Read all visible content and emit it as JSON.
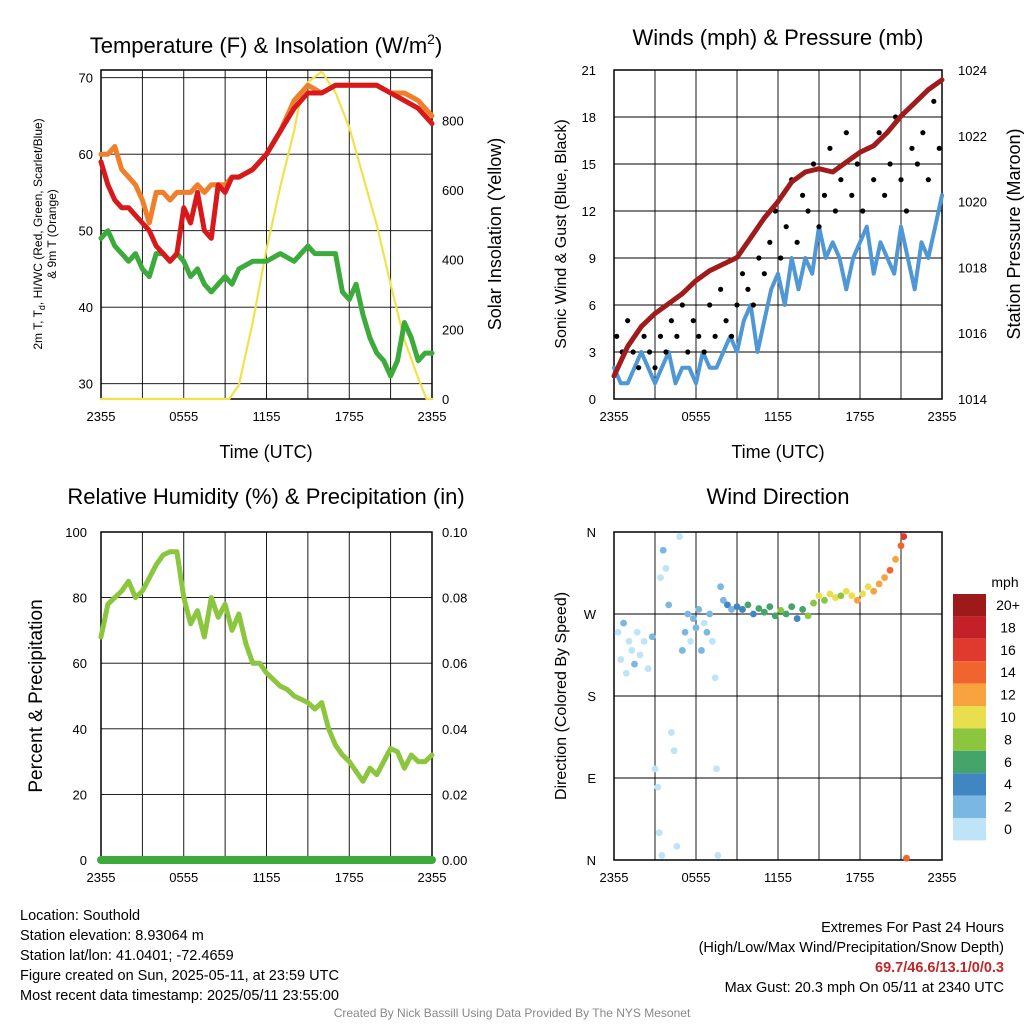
{
  "chart_data": [
    {
      "type": "line",
      "title_main": "Temperature (F) & Insolation (W/m",
      "title_sup": "2",
      "title_end": ")",
      "xlabel": "Time (UTC)",
      "ylabel_lines": [
        "2m T, T",
        "d",
        ", HI/WC (Red, Green, Scarlet/Blue)",
        "& 9m T (Orange)"
      ],
      "ylabel2": "Solar Insolation (Yellow)",
      "x_ticks": [
        "2355",
        "0555",
        "1155",
        "1755",
        "2355"
      ],
      "ylim": [
        28,
        71
      ],
      "y_ticks": [
        30,
        40,
        50,
        60,
        70
      ],
      "y2lim": [
        0,
        945
      ],
      "y2_ticks": [
        0,
        200,
        400,
        600,
        800
      ],
      "colors": {
        "temp_2m": "#d7191c",
        "dewpoint": "#3cab3c",
        "temp_9m": "#f07f2a",
        "insolation": "#f2e24a"
      },
      "series": [
        {
          "key": "temp_2m",
          "x": [
            0,
            0.5,
            1,
            1.5,
            2,
            2.5,
            3,
            3.5,
            4,
            4.5,
            5,
            5.5,
            6,
            6.5,
            7,
            7.5,
            8,
            8.5,
            9,
            9.5,
            10,
            11,
            12,
            13,
            14,
            15,
            16,
            17,
            18,
            19,
            20,
            21,
            22,
            23,
            24
          ],
          "values": [
            59,
            56,
            54,
            53,
            53,
            52,
            51,
            50,
            48,
            47,
            46,
            47,
            53,
            51,
            55,
            50,
            49,
            56,
            55,
            57,
            57,
            58,
            60,
            63,
            66,
            68,
            68,
            69,
            69,
            69,
            69,
            68,
            67,
            66,
            64
          ]
        },
        {
          "key": "temp_9m",
          "x": [
            0,
            0.5,
            1,
            1.5,
            2,
            2.5,
            3,
            3.5,
            4,
            4.5,
            5,
            5.5,
            6,
            6.5,
            7,
            7.5,
            8,
            8.5,
            9,
            9.5,
            10,
            11,
            12,
            13,
            14,
            15,
            16,
            17,
            18,
            19,
            20,
            21,
            22,
            23,
            24
          ],
          "values": [
            60,
            60,
            61,
            58,
            57,
            56,
            54,
            51,
            55,
            55,
            54,
            55,
            55,
            55,
            56,
            55,
            56,
            56,
            56,
            57,
            57,
            58,
            60,
            63,
            67,
            69,
            68,
            69,
            69,
            69,
            69,
            68,
            68,
            67,
            65
          ]
        },
        {
          "key": "dewpoint",
          "x": [
            0,
            0.5,
            1,
            1.5,
            2,
            2.5,
            3,
            3.5,
            4,
            4.5,
            5,
            5.5,
            6,
            6.5,
            7,
            7.5,
            8,
            8.5,
            9,
            9.5,
            10,
            11,
            12,
            13,
            14,
            14.5,
            15,
            15.5,
            16,
            16.5,
            17,
            17.5,
            18,
            18.5,
            19,
            19.5,
            20,
            20.5,
            21,
            21.5,
            22,
            22.5,
            23,
            23.5,
            24
          ],
          "values": [
            49,
            50,
            48,
            47,
            46,
            47,
            45,
            44,
            47,
            47,
            46,
            47,
            46,
            44,
            45,
            43,
            42,
            43,
            44,
            43,
            45,
            46,
            46,
            47,
            46,
            47,
            48,
            47,
            47,
            47,
            47,
            42,
            41,
            43,
            39,
            36,
            34,
            33,
            31,
            33,
            38,
            36,
            33,
            34,
            34
          ]
        },
        {
          "key": "insolation",
          "x": [
            0,
            9.3,
            10,
            11,
            12,
            13,
            14,
            14.5,
            15,
            16,
            17,
            18,
            19,
            20,
            21,
            22,
            23,
            23.6,
            24
          ],
          "values": [
            0,
            0,
            40,
            220,
            430,
            610,
            770,
            870,
            910,
            940,
            880,
            780,
            640,
            500,
            330,
            170,
            60,
            0,
            0
          ]
        }
      ]
    },
    {
      "type": "scatter",
      "title": "Winds (mph) & Pressure (mb)",
      "xlabel": "Time (UTC)",
      "ylabel": "Sonic Wind & Gust (Blue, Black)",
      "ylabel2": "Station Pressure (Maroon)",
      "x_ticks": [
        "2355",
        "0555",
        "1155",
        "1755",
        "2355"
      ],
      "ylim": [
        0,
        21
      ],
      "y_ticks": [
        0,
        3,
        6,
        9,
        12,
        15,
        18,
        21
      ],
      "y2lim": [
        1014,
        1024
      ],
      "y2_ticks": [
        1014,
        1016,
        1018,
        1020,
        1022,
        1024
      ],
      "colors": {
        "wind": "#4f97d5",
        "gust": "#000000",
        "pressure": "#a01b1b"
      },
      "series": [
        {
          "key": "wind",
          "x": [
            0,
            0.5,
            1,
            1.5,
            2,
            2.5,
            3,
            3.5,
            4,
            4.5,
            5,
            5.5,
            6,
            6.5,
            7,
            7.5,
            8,
            8.5,
            9,
            9.5,
            10,
            10.5,
            11,
            11.5,
            12,
            12.5,
            13,
            13.5,
            14,
            14.5,
            15,
            15.5,
            16,
            16.5,
            17,
            17.5,
            18,
            18.5,
            19,
            19.5,
            20,
            20.5,
            21,
            21.5,
            22,
            22.5,
            23,
            23.5,
            24
          ],
          "values": [
            2,
            1,
            1,
            2,
            3,
            2,
            1,
            2,
            3,
            1,
            2,
            2,
            1,
            3,
            2,
            2,
            3,
            4,
            3,
            5,
            6,
            3,
            5,
            7,
            8,
            6,
            9,
            7,
            9,
            8,
            11,
            9,
            10,
            9,
            7,
            9,
            10,
            11,
            8,
            10,
            9,
            8,
            11,
            9,
            7,
            10,
            9,
            11,
            13
          ]
        },
        {
          "key": "gust",
          "x": [
            0.2,
            0.6,
            1,
            1.4,
            1.8,
            2.2,
            2.6,
            3,
            3.4,
            3.8,
            4.2,
            4.6,
            5,
            5.4,
            5.8,
            6.2,
            6.6,
            7,
            7.4,
            7.8,
            8.2,
            8.6,
            9,
            9.4,
            9.8,
            10.2,
            10.6,
            11,
            11.4,
            11.8,
            12.2,
            12.6,
            13,
            13.4,
            13.8,
            14.2,
            14.6,
            15,
            15.4,
            15.8,
            16.2,
            16.6,
            17,
            17.4,
            17.8,
            18.2,
            18.6,
            19,
            19.4,
            19.8,
            20.2,
            20.6,
            21,
            21.4,
            21.8,
            22.2,
            22.6,
            23,
            23.4,
            23.8
          ],
          "values": [
            4,
            3,
            5,
            3,
            2,
            4,
            3,
            2,
            4,
            3,
            5,
            4,
            6,
            3,
            5,
            4,
            3,
            6,
            4,
            7,
            5,
            4,
            6,
            8,
            7,
            6,
            9,
            8,
            10,
            12,
            9,
            11,
            14,
            10,
            13,
            12,
            15,
            11,
            13,
            16,
            12,
            14,
            17,
            13,
            15,
            12,
            16,
            14,
            17,
            13,
            15,
            18,
            14,
            12,
            16,
            15,
            17,
            14,
            19,
            16
          ]
        },
        {
          "key": "pressure",
          "x": [
            0,
            1,
            2,
            3,
            4,
            5,
            6,
            7,
            8,
            9,
            10,
            11,
            12,
            13,
            14,
            15,
            16,
            17,
            18,
            19,
            20,
            21,
            22,
            23,
            24
          ],
          "values": [
            1014.7,
            1015.6,
            1016.2,
            1016.6,
            1016.9,
            1017.2,
            1017.6,
            1017.9,
            1018.1,
            1018.3,
            1018.9,
            1019.5,
            1020.0,
            1020.6,
            1020.9,
            1021.0,
            1020.9,
            1021.2,
            1021.5,
            1021.7,
            1022.1,
            1022.6,
            1023.0,
            1023.4,
            1023.7
          ]
        }
      ]
    },
    {
      "type": "line",
      "title": "Relative Humidity (%) & Precipitation (in)",
      "ylabel": "Percent & Precipitation",
      "x_ticks": [
        "2355",
        "0555",
        "1155",
        "1755",
        "2355"
      ],
      "ylim": [
        0,
        100
      ],
      "y_ticks": [
        0,
        20,
        40,
        60,
        80,
        100
      ],
      "y2lim": [
        0,
        0.1
      ],
      "y2_ticks": [
        "0.00",
        "0.02",
        "0.04",
        "0.06",
        "0.08",
        "0.10"
      ],
      "colors": {
        "rh": "#8cc63f",
        "precip": "#3cab3c"
      },
      "series": [
        {
          "key": "rh",
          "x": [
            0,
            0.5,
            1,
            1.5,
            2,
            2.5,
            3,
            3.5,
            4,
            4.5,
            5,
            5.5,
            6,
            6.5,
            7,
            7.5,
            8,
            8.5,
            9,
            9.5,
            10,
            10.5,
            11,
            11.5,
            12,
            12.5,
            13,
            13.5,
            14,
            14.5,
            15,
            15.5,
            16,
            16.5,
            17,
            17.5,
            18,
            18.5,
            19,
            19.5,
            20,
            20.5,
            21,
            21.5,
            22,
            22.5,
            23,
            23.5,
            24
          ],
          "values": [
            68,
            78,
            80,
            82,
            85,
            80,
            82,
            86,
            90,
            93,
            94,
            94,
            80,
            72,
            76,
            68,
            80,
            74,
            78,
            70,
            75,
            66,
            60,
            60,
            57,
            55,
            53,
            52,
            50,
            49,
            48,
            46,
            48,
            40,
            35,
            32,
            30,
            27,
            24,
            28,
            26,
            30,
            34,
            33,
            28,
            32,
            30,
            30,
            32
          ]
        },
        {
          "key": "precip",
          "x": [
            0,
            24
          ],
          "values": [
            0,
            0
          ]
        }
      ]
    },
    {
      "type": "scatter",
      "title": "Wind Direction",
      "ylabel": "Direction (Colored By Speed)",
      "x_ticks": [
        "2355",
        "0555",
        "1155",
        "1755",
        "2355"
      ],
      "y_ticks": [
        "N",
        "E",
        "S",
        "W",
        "N"
      ],
      "ylim": [
        0,
        360
      ],
      "colorbar_title": "mph",
      "colorbar_labels": [
        "20+",
        "18",
        "16",
        "14",
        "12",
        "10",
        "8",
        "6",
        "4",
        "2",
        "0"
      ],
      "colorbar_colors": [
        "#9e1a1a",
        "#c4202a",
        "#e03a2f",
        "#f0652e",
        "#f9a340",
        "#e8df4e",
        "#8cc63f",
        "#45a46a",
        "#3f86c2",
        "#7ab7e3",
        "#bfe3f7"
      ],
      "points": [
        [
          0.3,
          250,
          1
        ],
        [
          0.5,
          220,
          1
        ],
        [
          0.7,
          260,
          2
        ],
        [
          0.9,
          205,
          1
        ],
        [
          1.1,
          240,
          1
        ],
        [
          1.3,
          230,
          1
        ],
        [
          1.5,
          215,
          2
        ],
        [
          1.7,
          250,
          1
        ],
        [
          1.9,
          225,
          1
        ],
        [
          2.2,
          240,
          1
        ],
        [
          2.5,
          210,
          1
        ],
        [
          2.8,
          245,
          2
        ],
        [
          3.0,
          100,
          1
        ],
        [
          3.2,
          80,
          1
        ],
        [
          3.3,
          30,
          1
        ],
        [
          3.5,
          5,
          1
        ],
        [
          3.4,
          310,
          1
        ],
        [
          3.6,
          340,
          2
        ],
        [
          3.8,
          320,
          1
        ],
        [
          4.0,
          280,
          2
        ],
        [
          4.2,
          140,
          1
        ],
        [
          4.4,
          120,
          1
        ],
        [
          4.6,
          15,
          1
        ],
        [
          4.8,
          355,
          1
        ],
        [
          5.0,
          230,
          2
        ],
        [
          5.2,
          250,
          2
        ],
        [
          5.4,
          270,
          3
        ],
        [
          5.6,
          240,
          1
        ],
        [
          5.8,
          265,
          3
        ],
        [
          6.0,
          255,
          2
        ],
        [
          6.2,
          275,
          3
        ],
        [
          6.4,
          230,
          2
        ],
        [
          6.6,
          260,
          1
        ],
        [
          6.8,
          250,
          2
        ],
        [
          7.0,
          270,
          3
        ],
        [
          7.2,
          240,
          1
        ],
        [
          7.4,
          200,
          1
        ],
        [
          7.5,
          100,
          1
        ],
        [
          7.6,
          5,
          1
        ],
        [
          7.8,
          300,
          2
        ],
        [
          8.0,
          285,
          3
        ],
        [
          8.3,
          280,
          4
        ],
        [
          8.6,
          275,
          3
        ],
        [
          9.0,
          278,
          4
        ],
        [
          9.4,
          275,
          5
        ],
        [
          9.8,
          280,
          6
        ],
        [
          10.2,
          270,
          5
        ],
        [
          10.6,
          276,
          7
        ],
        [
          11.0,
          272,
          6
        ],
        [
          11.4,
          278,
          7
        ],
        [
          11.8,
          268,
          6
        ],
        [
          12.2,
          274,
          8
        ],
        [
          12.6,
          270,
          7
        ],
        [
          13.0,
          278,
          6
        ],
        [
          13.4,
          265,
          5
        ],
        [
          13.8,
          275,
          7
        ],
        [
          14.2,
          268,
          8
        ],
        [
          14.6,
          282,
          9
        ],
        [
          15.0,
          290,
          10
        ],
        [
          15.4,
          285,
          9
        ],
        [
          15.8,
          292,
          11
        ],
        [
          16.2,
          288,
          10
        ],
        [
          16.6,
          290,
          9
        ],
        [
          17.0,
          295,
          11
        ],
        [
          17.4,
          290,
          10
        ],
        [
          17.8,
          285,
          12
        ],
        [
          18.2,
          292,
          11
        ],
        [
          18.6,
          300,
          10
        ],
        [
          19.0,
          295,
          12
        ],
        [
          19.4,
          303,
          13
        ],
        [
          19.8,
          310,
          12
        ],
        [
          20.2,
          318,
          14
        ],
        [
          20.6,
          330,
          13
        ],
        [
          21.0,
          345,
          15
        ],
        [
          21.2,
          355,
          16
        ],
        [
          21.4,
          2,
          15
        ]
      ]
    }
  ],
  "info_left": [
    "Location: Southold",
    "Station elevation: 8.93064 m",
    "Station lat/lon: 41.0401; -72.4659",
    "Figure created on Sun, 2025-05-11, at 23:59 UTC",
    "Most recent data timestamp: 2025/05/11 23:55:00"
  ],
  "extremes": {
    "heading": "Extremes For Past 24 Hours",
    "subheading": "(High/Low/Max Wind/Precipitation/Snow Depth)",
    "values": "69.7/46.6/13.1/0/0.3",
    "gust": "Max Gust: 20.3 mph On 05/11 at 2340 UTC"
  },
  "credit": "Created By Nick Bassill Using Data Provided By The NYS Mesonet"
}
